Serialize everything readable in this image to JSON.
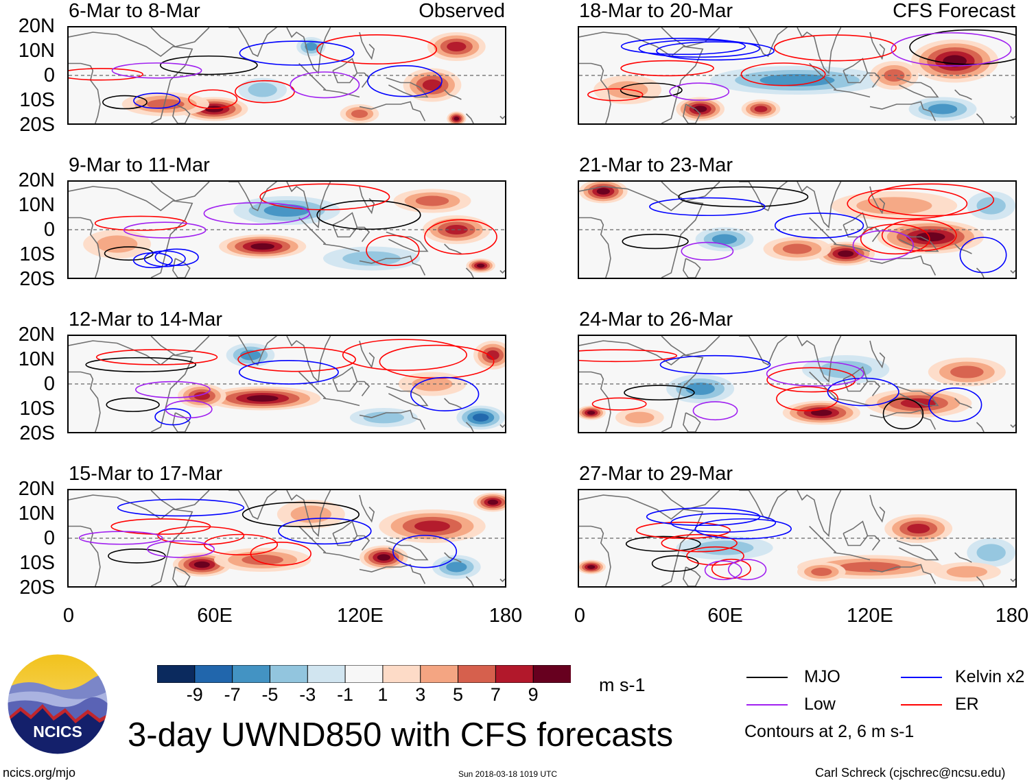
{
  "panels": [
    {
      "title": "6-Mar to 8-Mar",
      "tag": "Observed"
    },
    {
      "title": "9-Mar to 11-Mar",
      "tag": ""
    },
    {
      "title": "12-Mar to 14-Mar",
      "tag": ""
    },
    {
      "title": "15-Mar to 17-Mar",
      "tag": ""
    },
    {
      "title": "18-Mar to 20-Mar",
      "tag": "CFS Forecast"
    },
    {
      "title": "21-Mar to 23-Mar",
      "tag": ""
    },
    {
      "title": "24-Mar to 26-Mar",
      "tag": ""
    },
    {
      "title": "27-Mar to 29-Mar",
      "tag": ""
    }
  ],
  "yticks": [
    "20N",
    "10N",
    "0",
    "10S",
    "20S"
  ],
  "xticks": [
    "0",
    "60E",
    "120E",
    "180"
  ],
  "colorbar": {
    "colors": [
      "#0b2a5e",
      "#2166ac",
      "#4393c3",
      "#92c5de",
      "#d1e5f0",
      "#f7f7f7",
      "#fddbc7",
      "#f4a582",
      "#d6604d",
      "#b2182b",
      "#67001f"
    ],
    "labels": [
      "-9",
      "-7",
      "-5",
      "-3",
      "-1",
      "1",
      "3",
      "5",
      "7",
      "9"
    ],
    "units": "m s-1"
  },
  "legend": {
    "items": [
      {
        "label": "MJO",
        "color": "#000000"
      },
      {
        "label": "Kelvin x2",
        "color": "#0000ff"
      },
      {
        "label": "Low",
        "color": "#a020f0"
      },
      {
        "label": "ER",
        "color": "#ff0000"
      }
    ],
    "note": "Contours at 2, 6 m s-1"
  },
  "main_title": "3-day UWND850 with CFS forecasts",
  "logo_text": "NCICS",
  "footer": {
    "left": "ncics.org/mjo",
    "center": "Sun 2018-03-18 1019 UTC",
    "right": "Carl Schreck (cjschrec@ncsu.edu)"
  },
  "chart_data": {
    "type": "heatmap",
    "title": "3-day UWND850 with CFS forecasts",
    "variable": "850-hPa zonal wind anomaly",
    "units": "m s-1",
    "xlim": [
      0,
      180
    ],
    "ylim": [
      -20,
      20
    ],
    "x_ticks": [
      0,
      60,
      120,
      180
    ],
    "y_ticks": [
      20,
      10,
      0,
      -10,
      -20
    ],
    "color_levels": [
      -9,
      -7,
      -5,
      -3,
      -1,
      1,
      3,
      5,
      7,
      9
    ],
    "contour_levels": [
      2,
      6
    ],
    "contour_series": [
      "MJO",
      "Kelvin x2",
      "Low",
      "ER"
    ],
    "panels": [
      {
        "period": "6-Mar to 8-Mar",
        "source": "Observed",
        "blobs": [
          [
            60,
            -14,
            14,
            5,
            9
          ],
          [
            150,
            -4,
            12,
            7,
            8
          ],
          [
            160,
            12,
            12,
            6,
            7
          ],
          [
            40,
            -12,
            18,
            5,
            5
          ],
          [
            100,
            12,
            6,
            4,
            -5
          ],
          [
            80,
            -6,
            10,
            5,
            -3
          ],
          [
            120,
            -16,
            8,
            4,
            6
          ],
          [
            160,
            -18,
            4,
            3,
            9
          ]
        ]
      },
      {
        "period": "9-Mar to 11-Mar",
        "source": "Observed",
        "blobs": [
          [
            80,
            -7,
            18,
            5,
            9
          ],
          [
            160,
            0,
            14,
            6,
            8
          ],
          [
            150,
            12,
            16,
            5,
            5
          ],
          [
            90,
            8,
            22,
            6,
            -5
          ],
          [
            20,
            -6,
            14,
            6,
            4
          ],
          [
            125,
            -12,
            20,
            5,
            -3
          ],
          [
            170,
            -15,
            6,
            3,
            9
          ]
        ]
      },
      {
        "period": "12-Mar to 14-Mar",
        "source": "Observed",
        "blobs": [
          [
            80,
            -6,
            24,
            5,
            9
          ],
          [
            55,
            -5,
            10,
            5,
            7
          ],
          [
            175,
            12,
            8,
            6,
            8
          ],
          [
            150,
            0,
            14,
            5,
            4
          ],
          [
            170,
            -14,
            10,
            5,
            -7
          ],
          [
            75,
            12,
            10,
            5,
            -5
          ],
          [
            130,
            -14,
            14,
            4,
            -4
          ]
        ]
      },
      {
        "period": "15-Mar to 17-Mar",
        "source": "Observed",
        "blobs": [
          [
            55,
            -11,
            12,
            5,
            9
          ],
          [
            150,
            5,
            22,
            7,
            8
          ],
          [
            175,
            15,
            8,
            4,
            9
          ],
          [
            130,
            -8,
            10,
            5,
            9
          ],
          [
            80,
            -9,
            20,
            5,
            5
          ],
          [
            160,
            -12,
            10,
            5,
            -5
          ],
          [
            100,
            10,
            14,
            6,
            4
          ]
        ]
      },
      {
        "period": "18-Mar to 20-Mar",
        "source": "CFS Forecast",
        "blobs": [
          [
            155,
            6,
            18,
            9,
            9
          ],
          [
            50,
            -14,
            10,
            5,
            9
          ],
          [
            75,
            -14,
            8,
            4,
            7
          ],
          [
            90,
            -2,
            36,
            6,
            -5
          ],
          [
            150,
            -14,
            14,
            5,
            -5
          ],
          [
            130,
            0,
            10,
            6,
            6
          ],
          [
            20,
            -6,
            14,
            6,
            4
          ]
        ]
      },
      {
        "period": "21-Mar to 23-Mar",
        "source": "CFS Forecast",
        "blobs": [
          [
            145,
            -3,
            22,
            7,
            9
          ],
          [
            110,
            -10,
            12,
            5,
            9
          ],
          [
            10,
            16,
            10,
            5,
            9
          ],
          [
            60,
            -4,
            12,
            5,
            -5
          ],
          [
            130,
            10,
            26,
            6,
            4
          ],
          [
            170,
            10,
            10,
            6,
            -3
          ],
          [
            90,
            -8,
            14,
            5,
            5
          ]
        ]
      },
      {
        "period": "24-Mar to 26-Mar",
        "source": "CFS Forecast",
        "blobs": [
          [
            100,
            -12,
            16,
            5,
            9
          ],
          [
            140,
            -8,
            22,
            6,
            8
          ],
          [
            160,
            5,
            16,
            6,
            5
          ],
          [
            50,
            -2,
            14,
            6,
            -5
          ],
          [
            110,
            6,
            18,
            6,
            -4
          ],
          [
            5,
            -12,
            6,
            3,
            9
          ],
          [
            25,
            -14,
            10,
            4,
            4
          ]
        ]
      },
      {
        "period": "27-Mar to 29-Mar",
        "source": "CFS Forecast",
        "blobs": [
          [
            120,
            -12,
            30,
            5,
            5
          ],
          [
            140,
            4,
            14,
            6,
            7
          ],
          [
            170,
            -6,
            10,
            6,
            -4
          ],
          [
            60,
            -4,
            20,
            5,
            -3
          ],
          [
            100,
            -14,
            10,
            4,
            6
          ],
          [
            5,
            -12,
            6,
            3,
            9
          ],
          [
            160,
            -14,
            14,
            4,
            4
          ]
        ]
      }
    ]
  }
}
